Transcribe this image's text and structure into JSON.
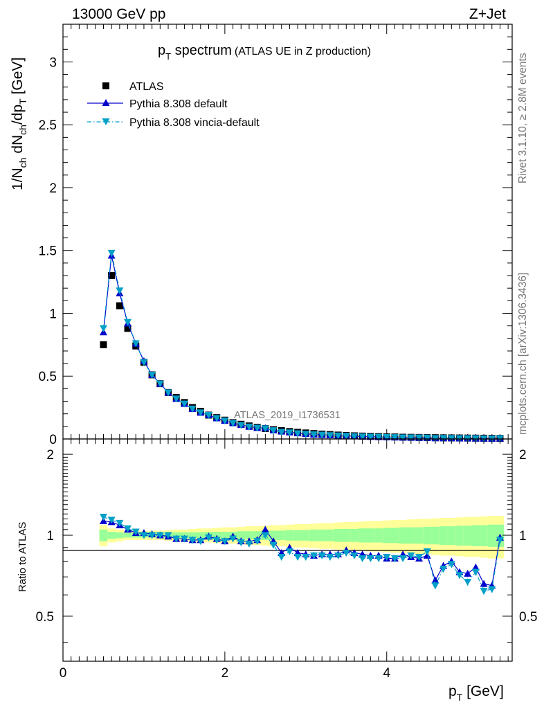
{
  "header": {
    "left": "13000 GeV pp",
    "right": "Z+Jet"
  },
  "side_labels": {
    "top": "Rivet 3.1.10, ≥ 2.8M events",
    "bottom": "mcplots.cern.ch [arXiv:1306.3436]"
  },
  "chart_data": [
    {
      "type": "scatter",
      "title_main": "p",
      "title_sub": "T",
      "title_word": " spectrum",
      "title_extra": "(ATLAS UE in Z production)",
      "watermark": "ATLAS_2019_I1736531",
      "ylabel": "1/N_ch dN_ch/dp_T [GeV]",
      "xlim": [
        0,
        5.55
      ],
      "ylim": [
        0,
        3.3
      ],
      "x_ticks": [
        "0",
        "2",
        "4"
      ],
      "y_ticks": [
        "0",
        "0.5",
        "1",
        "1.5",
        "2",
        "2.5",
        "3"
      ],
      "x": [
        0.5,
        0.6,
        0.7,
        0.8,
        0.9,
        1.0,
        1.1,
        1.2,
        1.3,
        1.4,
        1.5,
        1.6,
        1.7,
        1.8,
        1.9,
        2.0,
        2.1,
        2.2,
        2.3,
        2.4,
        2.5,
        2.6,
        2.7,
        2.8,
        2.9,
        3.0,
        3.1,
        3.2,
        3.3,
        3.4,
        3.5,
        3.6,
        3.7,
        3.8,
        3.9,
        4.0,
        4.1,
        4.2,
        4.3,
        4.4,
        4.5,
        4.6,
        4.7,
        4.8,
        4.9,
        5.0,
        5.1,
        5.2,
        5.3,
        5.4
      ],
      "series": [
        {
          "name": "ATLAS",
          "color": "#000000",
          "marker": "square",
          "values": [
            0.75,
            1.3,
            1.06,
            0.88,
            0.74,
            0.61,
            0.51,
            0.44,
            0.37,
            0.33,
            0.29,
            0.25,
            0.22,
            0.19,
            0.17,
            0.15,
            0.13,
            0.117,
            0.104,
            0.093,
            0.083,
            0.074,
            0.066,
            0.059,
            0.053,
            0.048,
            0.043,
            0.039,
            0.035,
            0.031,
            0.028,
            0.025,
            0.023,
            0.021,
            0.019,
            0.017,
            0.016,
            0.014,
            0.013,
            0.012,
            0.011,
            0.01,
            0.009,
            0.0085,
            0.0078,
            0.0072,
            0.0066,
            0.006,
            0.0055,
            0.005
          ]
        },
        {
          "name": "Pythia 8.308 default",
          "color": "#0000cc",
          "marker": "triangle-up",
          "line": "solid",
          "values": [
            0.85,
            1.46,
            1.16,
            0.92,
            0.76,
            0.62,
            0.51,
            0.44,
            0.37,
            0.32,
            0.28,
            0.24,
            0.21,
            0.19,
            0.165,
            0.145,
            0.127,
            0.112,
            0.098,
            0.089,
            0.087,
            0.07,
            0.06,
            0.053,
            0.046,
            0.041,
            0.036,
            0.033,
            0.03,
            0.026,
            0.024,
            0.022,
            0.02,
            0.018,
            0.016,
            0.014,
            0.013,
            0.012,
            0.011,
            0.01,
            0.0092,
            0.0068,
            0.0069,
            0.0068,
            0.0057,
            0.0052,
            0.005,
            0.004,
            0.0036,
            0.0049
          ]
        },
        {
          "name": "Pythia 8.308 vincia-default",
          "color": "#00a0c8",
          "marker": "triangle-down",
          "line": "dash-dot",
          "values": [
            0.88,
            1.48,
            1.18,
            0.93,
            0.76,
            0.61,
            0.51,
            0.44,
            0.37,
            0.32,
            0.28,
            0.24,
            0.21,
            0.19,
            0.165,
            0.145,
            0.126,
            0.11,
            0.097,
            0.088,
            0.083,
            0.068,
            0.055,
            0.051,
            0.044,
            0.04,
            0.036,
            0.033,
            0.029,
            0.026,
            0.024,
            0.021,
            0.019,
            0.017,
            0.016,
            0.014,
            0.013,
            0.011,
            0.011,
            0.01,
            0.0095,
            0.0065,
            0.0068,
            0.0067,
            0.0055,
            0.0048,
            0.0048,
            0.0037,
            0.0034,
            0.0048
          ]
        }
      ]
    },
    {
      "type": "scatter",
      "ylabel": "Ratio to ATLAS",
      "xlabel_main": "p",
      "xlabel_sub": "T",
      "xlabel_unit": " [GeV]",
      "xlim": [
        0,
        5.55
      ],
      "ylim": [
        0.34,
        2.28
      ],
      "y_ticks": [
        "0.5",
        "1",
        "2"
      ],
      "x": [
        0.5,
        0.6,
        0.7,
        0.8,
        0.9,
        1.0,
        1.1,
        1.2,
        1.3,
        1.4,
        1.5,
        1.6,
        1.7,
        1.8,
        1.9,
        2.0,
        2.1,
        2.2,
        2.3,
        2.4,
        2.5,
        2.6,
        2.7,
        2.8,
        2.9,
        3.0,
        3.1,
        3.2,
        3.3,
        3.4,
        3.5,
        3.6,
        3.7,
        3.8,
        3.9,
        4.0,
        4.1,
        4.2,
        4.3,
        4.4,
        4.5,
        4.6,
        4.7,
        4.8,
        4.9,
        5.0,
        5.1,
        5.2,
        5.3,
        5.4
      ],
      "band_inner": [
        0.05,
        0.03,
        0.025,
        0.02,
        0.02,
        0.02,
        0.02,
        0.02,
        0.02,
        0.025,
        0.025,
        0.025,
        0.025,
        0.03,
        0.03,
        0.03,
        0.03,
        0.035,
        0.035,
        0.035,
        0.04,
        0.04,
        0.04,
        0.045,
        0.045,
        0.045,
        0.05,
        0.05,
        0.05,
        0.055,
        0.055,
        0.055,
        0.06,
        0.06,
        0.06,
        0.065,
        0.065,
        0.07,
        0.07,
        0.07,
        0.075,
        0.075,
        0.08,
        0.08,
        0.085,
        0.085,
        0.09,
        0.09,
        0.095,
        0.095
      ],
      "band_outer": [
        0.09,
        0.06,
        0.05,
        0.04,
        0.04,
        0.04,
        0.04,
        0.04,
        0.045,
        0.05,
        0.05,
        0.055,
        0.06,
        0.06,
        0.065,
        0.07,
        0.07,
        0.075,
        0.08,
        0.08,
        0.085,
        0.09,
        0.09,
        0.095,
        0.1,
        0.1,
        0.105,
        0.11,
        0.11,
        0.115,
        0.12,
        0.12,
        0.125,
        0.13,
        0.13,
        0.135,
        0.14,
        0.14,
        0.145,
        0.15,
        0.15,
        0.155,
        0.16,
        0.16,
        0.165,
        0.17,
        0.17,
        0.175,
        0.18,
        0.18
      ],
      "series": [
        {
          "name": "Pythia 8.308 default",
          "color": "#0000cc",
          "marker": "triangle-up",
          "line": "solid",
          "values": [
            1.13,
            1.12,
            1.09,
            1.05,
            1.02,
            1.02,
            1.01,
            1.0,
            0.99,
            0.97,
            0.97,
            0.96,
            0.96,
            0.99,
            0.97,
            0.95,
            0.99,
            0.95,
            0.95,
            0.96,
            1.05,
            0.95,
            0.86,
            0.9,
            0.86,
            0.85,
            0.84,
            0.85,
            0.85,
            0.85,
            0.88,
            0.86,
            0.85,
            0.84,
            0.84,
            0.82,
            0.82,
            0.85,
            0.83,
            0.82,
            0.84,
            0.68,
            0.77,
            0.8,
            0.73,
            0.72,
            0.76,
            0.66,
            0.65,
            0.98
          ]
        },
        {
          "name": "Pythia 8.308 vincia-default",
          "color": "#00a0c8",
          "marker": "triangle-down",
          "line": "dash-dot",
          "values": [
            1.17,
            1.14,
            1.11,
            1.06,
            1.03,
            1.0,
            1.0,
            1.0,
            1.0,
            0.97,
            0.97,
            0.96,
            0.95,
            0.98,
            0.96,
            0.95,
            0.97,
            0.94,
            0.93,
            0.95,
            1.0,
            0.92,
            0.83,
            0.87,
            0.83,
            0.83,
            0.84,
            0.84,
            0.83,
            0.84,
            0.86,
            0.84,
            0.82,
            0.82,
            0.82,
            0.83,
            0.82,
            0.82,
            0.84,
            0.83,
            0.87,
            0.65,
            0.75,
            0.78,
            0.71,
            0.67,
            0.73,
            0.62,
            0.63,
            0.96
          ]
        }
      ]
    }
  ]
}
